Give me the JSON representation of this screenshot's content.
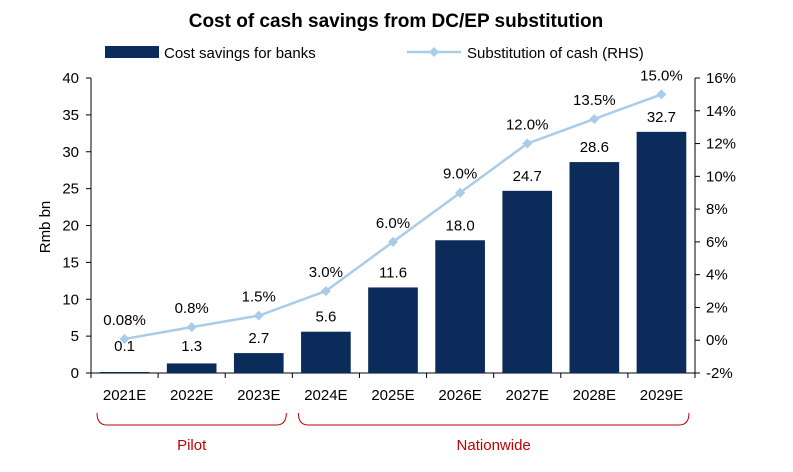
{
  "chart_data": {
    "type": "bar",
    "title": "Cost of cash savings from DC/EP substitution",
    "categories": [
      "2021E",
      "2022E",
      "2023E",
      "2024E",
      "2025E",
      "2026E",
      "2027E",
      "2028E",
      "2029E"
    ],
    "series": [
      {
        "name": "Cost savings for banks",
        "type": "bar",
        "axis": "left",
        "color": "#0b2c5a",
        "values": [
          0.1,
          1.3,
          2.7,
          5.6,
          11.6,
          18.0,
          24.7,
          28.6,
          32.7
        ],
        "labels": [
          "0.1",
          "1.3",
          "2.7",
          "5.6",
          "11.6",
          "18.0",
          "24.7",
          "28.6",
          "32.7"
        ]
      },
      {
        "name": "Substitution of cash (RHS)",
        "type": "line",
        "axis": "right",
        "color": "#a9cce8",
        "values": [
          0.08,
          0.8,
          1.5,
          3.0,
          6.0,
          9.0,
          12.0,
          13.5,
          15.0
        ],
        "labels": [
          "0.08%",
          "0.8%",
          "1.5%",
          "3.0%",
          "6.0%",
          "9.0%",
          "12.0%",
          "13.5%",
          "15.0%"
        ]
      }
    ],
    "ylabel": "Rmb bn",
    "ylim": [
      0,
      40
    ],
    "y_ticks": [
      "0",
      "5",
      "10",
      "15",
      "20",
      "25",
      "30",
      "35",
      "40"
    ],
    "y2lim": [
      -2,
      16
    ],
    "y2_ticks": [
      "-2%",
      "0%",
      "2%",
      "4%",
      "6%",
      "8%",
      "10%",
      "12%",
      "14%",
      "16%"
    ],
    "legend_position": "top",
    "grid": false,
    "brackets": [
      {
        "label": "Pilot",
        "from": "2021E",
        "to": "2023E",
        "color": "#c00000"
      },
      {
        "label": "Nationwide",
        "from": "2024E",
        "to": "2029E",
        "color": "#c00000"
      }
    ]
  }
}
